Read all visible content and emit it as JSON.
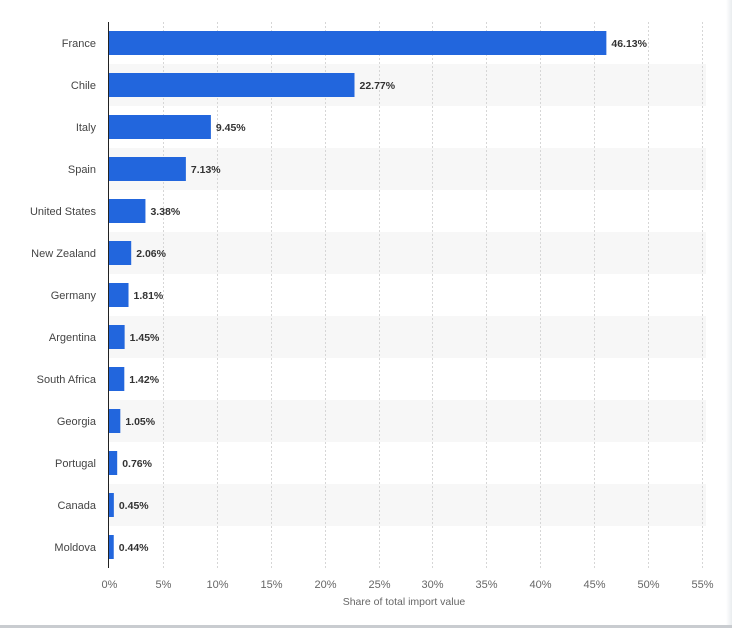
{
  "chart_data": {
    "type": "bar",
    "orientation": "horizontal",
    "categories": [
      "France",
      "Chile",
      "Italy",
      "Spain",
      "United States",
      "New Zealand",
      "Germany",
      "Argentina",
      "South Africa",
      "Georgia",
      "Portugal",
      "Canada",
      "Moldova"
    ],
    "values": [
      46.13,
      22.77,
      9.45,
      7.13,
      3.38,
      2.06,
      1.81,
      1.45,
      1.42,
      1.05,
      0.76,
      0.45,
      0.44
    ],
    "value_labels": [
      "46.13%",
      "22.77%",
      "9.45%",
      "7.13%",
      "3.38%",
      "2.06%",
      "1.81%",
      "1.45%",
      "1.42%",
      "1.05%",
      "0.76%",
      "0.45%",
      "0.44%"
    ],
    "xlabel": "Share of total import value",
    "ylabel": "",
    "xlim": [
      0,
      55
    ],
    "x_ticks": [
      0,
      5,
      10,
      15,
      20,
      25,
      30,
      35,
      40,
      45,
      50,
      55
    ],
    "x_tick_labels": [
      "0%",
      "5%",
      "10%",
      "15%",
      "20%",
      "25%",
      "30%",
      "35%",
      "40%",
      "45%",
      "50%",
      "55%"
    ],
    "grid": true,
    "bar_color": "#2266dd",
    "alt_row_color": "#f7f7f7",
    "grid_color": "#d6d6d6"
  }
}
